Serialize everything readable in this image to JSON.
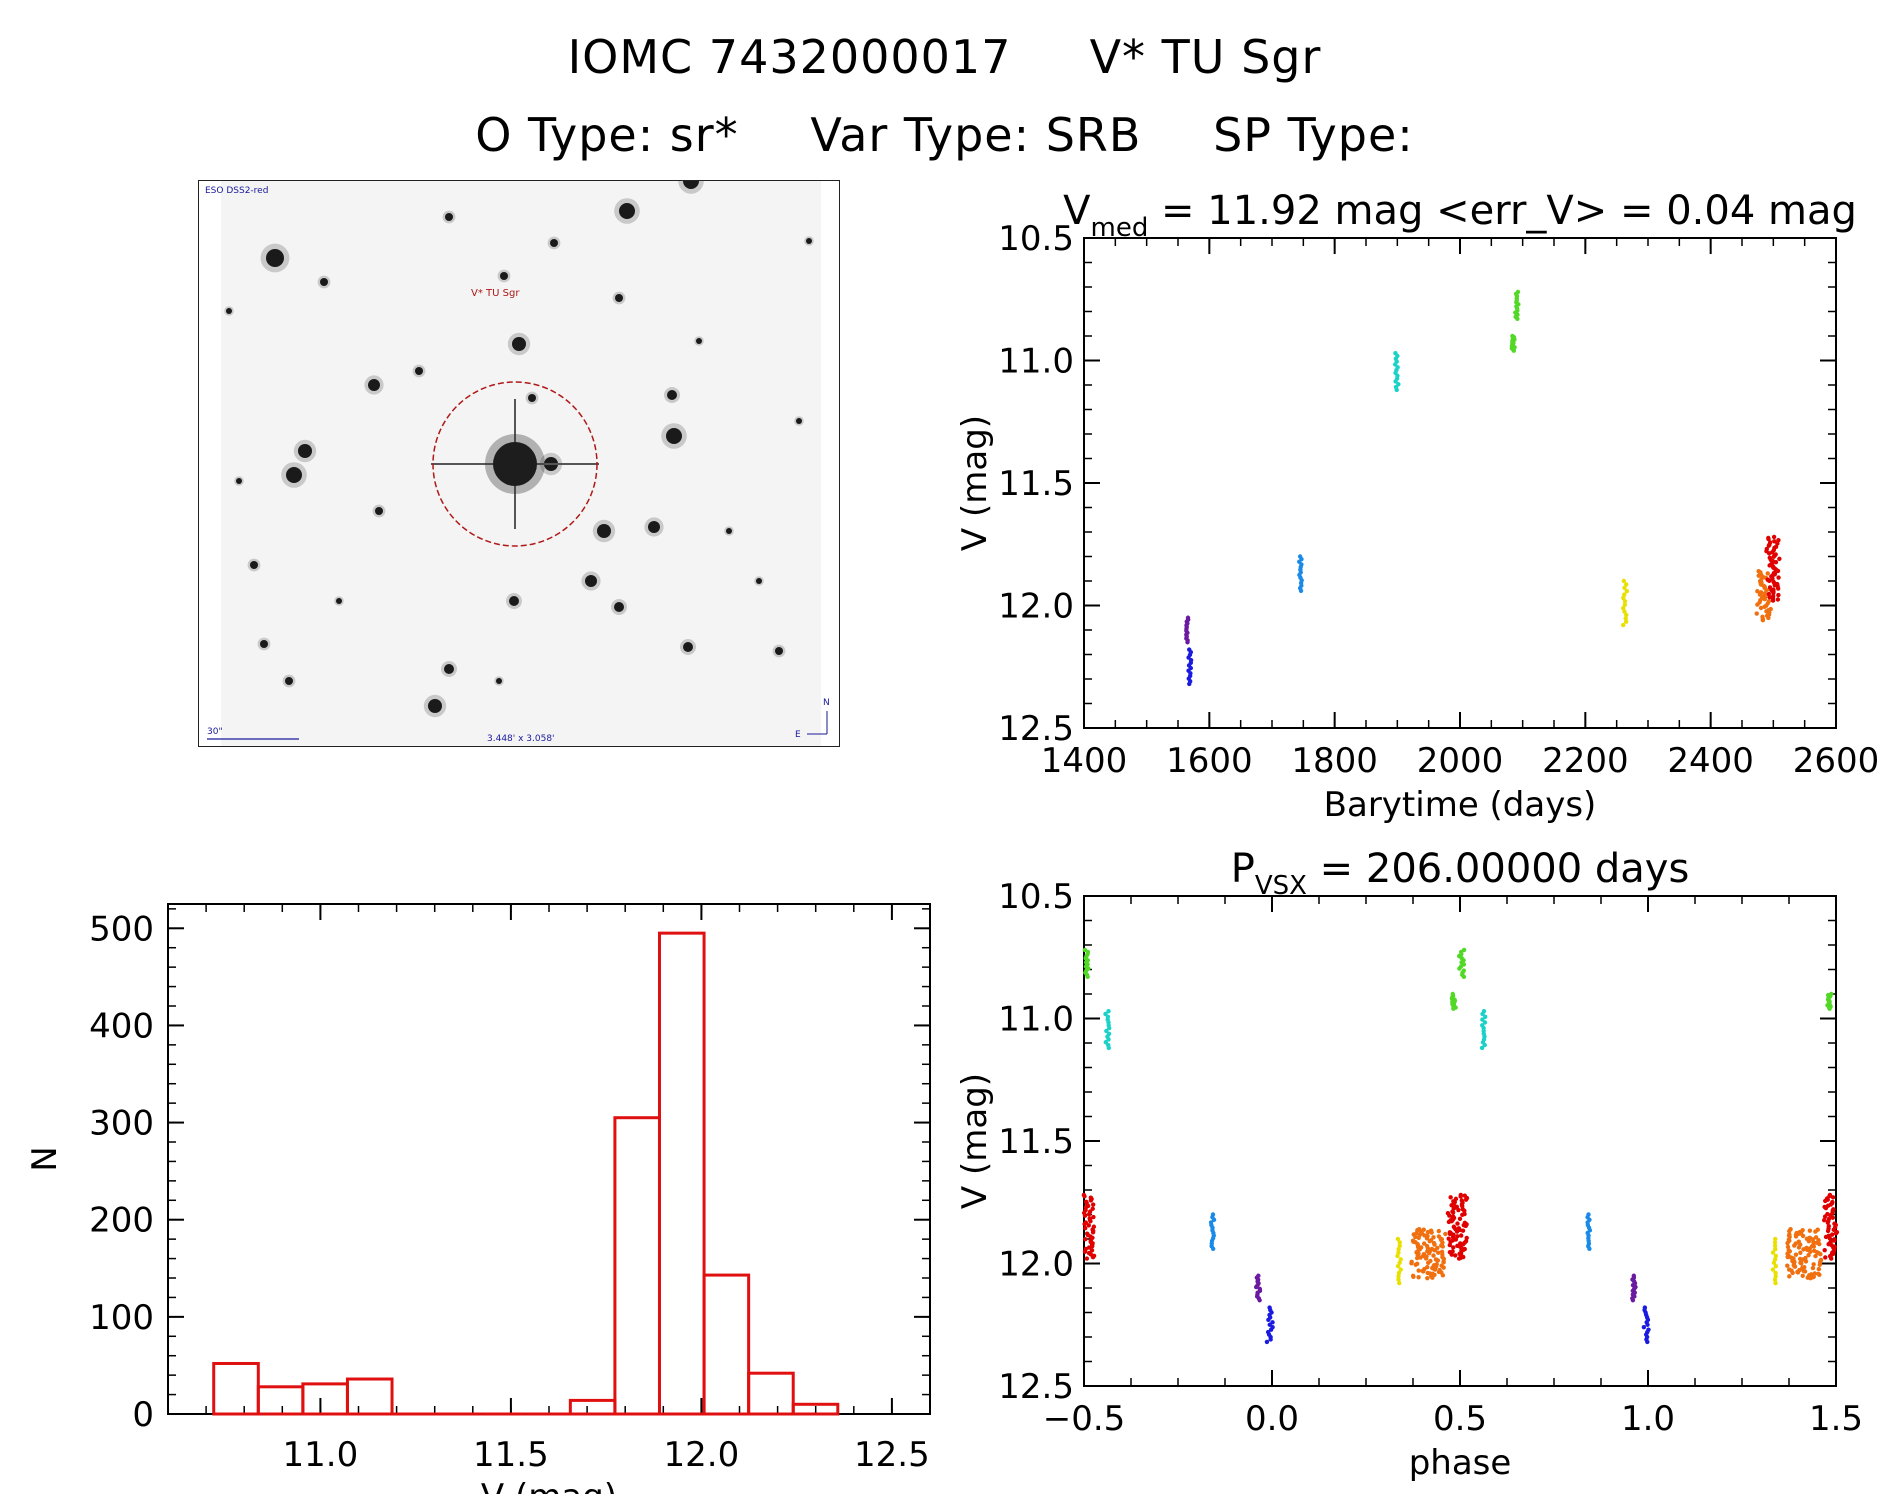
{
  "header": {
    "star_id": "IOMC 7432000017",
    "star_name": "V* TU Sgr",
    "otype": "O Type: sr*",
    "vartype": "Var Type: SRB",
    "sptype": "SP Type:"
  },
  "finder_chart": {
    "survey_label": "ESO DSS2-red",
    "target_label": "V* TU Sgr",
    "scale_label": "30\"",
    "fov_label": "3.448' x 3.058'",
    "north_label": "N",
    "east_label": "E"
  },
  "chart_data": [
    {
      "id": "lightcurve",
      "type": "scatter",
      "title_main": "V",
      "title_sub": "med",
      "title_rest": " = 11.92 mag <err_V> = 0.04 mag",
      "xlabel": "Barytime (days)",
      "ylabel": "V (mag)",
      "xlim": [
        1400,
        2600
      ],
      "ylim": [
        12.5,
        10.5
      ],
      "y_reversed": true,
      "xticks": [
        1400,
        1600,
        1800,
        2000,
        2200,
        2400,
        2600
      ],
      "yticks": [
        10.5,
        11.0,
        11.5,
        12.0,
        12.5
      ],
      "series": [
        {
          "color": "#6a1aa0",
          "points": [
            [
              1565,
              12.05
            ],
            [
              1566,
              12.15
            ]
          ]
        },
        {
          "color": "#1a1ae0",
          "points": [
            [
              1568,
              12.18
            ],
            [
              1570,
              12.32
            ]
          ]
        },
        {
          "color": "#1a8ae8",
          "points": [
            [
              1745,
              11.8
            ],
            [
              1746,
              11.94
            ]
          ]
        },
        {
          "color": "#1ad2c8",
          "points": [
            [
              1898,
              10.97
            ],
            [
              1900,
              11.12
            ]
          ]
        },
        {
          "color": "#52d826",
          "points": [
            [
              2083,
              10.9
            ],
            [
              2085,
              10.96
            ]
          ]
        },
        {
          "color": "#52d826",
          "points": [
            [
              2090,
              10.72
            ],
            [
              2091,
              10.83
            ]
          ]
        },
        {
          "color": "#e8e000",
          "points": [
            [
              2262,
              11.9
            ],
            [
              2264,
              12.08
            ]
          ]
        },
        {
          "color": "#f07010",
          "points": [
            [
              2475,
              11.86
            ],
            [
              2495,
              12.06
            ]
          ]
        },
        {
          "color": "#e00000",
          "points": [
            [
              2490,
              11.72
            ],
            [
              2510,
              11.98
            ]
          ]
        }
      ]
    },
    {
      "id": "phased",
      "type": "scatter",
      "title_main": "P",
      "title_sub": "VSX",
      "title_rest": " = 206.00000 days",
      "xlabel": "phase",
      "ylabel": "V (mag)",
      "xlim": [
        -0.5,
        1.5
      ],
      "ylim": [
        12.5,
        10.5
      ],
      "y_reversed": true,
      "xticks": [
        -0.5,
        0.0,
        0.5,
        1.0,
        1.5
      ],
      "xtick_labels": [
        "−0.5",
        "0.0",
        "0.5",
        "1.0",
        "1.5"
      ],
      "yticks": [
        10.5,
        11.0,
        11.5,
        12.0,
        12.5
      ],
      "series": [
        {
          "color": "#52d826",
          "points": [
            [
              -0.495,
              10.72
            ],
            [
              -0.49,
              10.83
            ]
          ]
        },
        {
          "color": "#1ad2c8",
          "points": [
            [
              -0.44,
              10.97
            ],
            [
              -0.435,
              11.12
            ]
          ]
        },
        {
          "color": "#e00000",
          "points": [
            [
              -0.5,
              11.72
            ],
            [
              -0.475,
              11.98
            ]
          ]
        },
        {
          "color": "#1a8ae8",
          "points": [
            [
              -0.16,
              11.8
            ],
            [
              -0.155,
              11.94
            ]
          ]
        },
        {
          "color": "#6a1aa0",
          "points": [
            [
              -0.04,
              12.05
            ],
            [
              -0.035,
              12.15
            ]
          ]
        },
        {
          "color": "#1a1ae0",
          "points": [
            [
              -0.01,
              12.18
            ],
            [
              0.0,
              12.32
            ]
          ]
        },
        {
          "color": "#e8e000",
          "points": [
            [
              0.335,
              11.9
            ],
            [
              0.34,
              12.08
            ]
          ]
        },
        {
          "color": "#f07010",
          "points": [
            [
              0.37,
              11.86
            ],
            [
              0.46,
              12.06
            ]
          ]
        },
        {
          "color": "#e00000",
          "points": [
            [
              0.47,
              11.72
            ],
            [
              0.52,
              11.98
            ]
          ]
        },
        {
          "color": "#52d826",
          "points": [
            [
              0.48,
              10.9
            ],
            [
              0.485,
              10.96
            ]
          ]
        },
        {
          "color": "#52d826",
          "points": [
            [
              0.5,
              10.72
            ],
            [
              0.51,
              10.83
            ]
          ]
        },
        {
          "color": "#1ad2c8",
          "points": [
            [
              0.56,
              10.97
            ],
            [
              0.565,
              11.12
            ]
          ]
        },
        {
          "color": "#1a8ae8",
          "points": [
            [
              0.84,
              11.8
            ],
            [
              0.845,
              11.94
            ]
          ]
        },
        {
          "color": "#6a1aa0",
          "points": [
            [
              0.96,
              12.05
            ],
            [
              0.965,
              12.15
            ]
          ]
        },
        {
          "color": "#1a1ae0",
          "points": [
            [
              0.99,
              12.18
            ],
            [
              1.0,
              12.32
            ]
          ]
        },
        {
          "color": "#e8e000",
          "points": [
            [
              1.335,
              11.9
            ],
            [
              1.34,
              12.08
            ]
          ]
        },
        {
          "color": "#f07010",
          "points": [
            [
              1.37,
              11.86
            ],
            [
              1.46,
              12.06
            ]
          ]
        },
        {
          "color": "#e00000",
          "points": [
            [
              1.47,
              11.72
            ],
            [
              1.5,
              11.98
            ]
          ]
        },
        {
          "color": "#52d826",
          "points": [
            [
              1.48,
              10.9
            ],
            [
              1.485,
              10.96
            ]
          ]
        }
      ]
    },
    {
      "id": "histogram",
      "type": "bar",
      "xlabel": "V (mag)",
      "ylabel": "N",
      "xlim": [
        10.6,
        12.6
      ],
      "ylim": [
        0,
        525
      ],
      "xticks": [
        11.0,
        11.5,
        12.0,
        12.5
      ],
      "xtick_labels": [
        "11.0",
        "11.5",
        "12.0",
        "12.5"
      ],
      "yticks": [
        0,
        100,
        200,
        300,
        400,
        500
      ],
      "bin_width": 0.117,
      "bin_left_edges": [
        10.72,
        10.837,
        10.954,
        11.071,
        11.188,
        11.305,
        11.422,
        11.539,
        11.656,
        11.773,
        11.89,
        12.007,
        12.124,
        12.241
      ],
      "counts": [
        52,
        28,
        31,
        36,
        0,
        0,
        0,
        0,
        14,
        305,
        495,
        143,
        42,
        10
      ],
      "color": "#e01010"
    }
  ]
}
